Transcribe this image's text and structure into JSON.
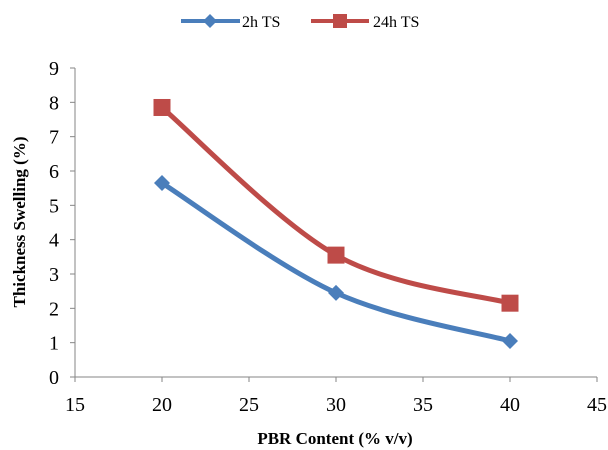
{
  "chart_data": {
    "type": "scatter",
    "xlabel": "PBR Content (% v/v)",
    "ylabel": "Thickness Swelling (%)",
    "xlim": [
      15,
      45
    ],
    "ylim": [
      0,
      9
    ],
    "xticks": [
      15,
      20,
      25,
      30,
      35,
      40,
      45
    ],
    "yticks": [
      0,
      1,
      2,
      3,
      4,
      5,
      6,
      7,
      8,
      9
    ],
    "grid": false,
    "legend_position": "top",
    "smooth_lines": true,
    "series": [
      {
        "name": "2h TS",
        "color": "#4a7ebb",
        "marker": "diamond",
        "x": [
          20,
          30,
          40
        ],
        "y": [
          5.65,
          2.45,
          1.05
        ]
      },
      {
        "name": "24h TS",
        "color": "#be4b48",
        "marker": "square",
        "x": [
          20,
          30,
          40
        ],
        "y": [
          7.85,
          3.55,
          2.15
        ]
      }
    ]
  }
}
